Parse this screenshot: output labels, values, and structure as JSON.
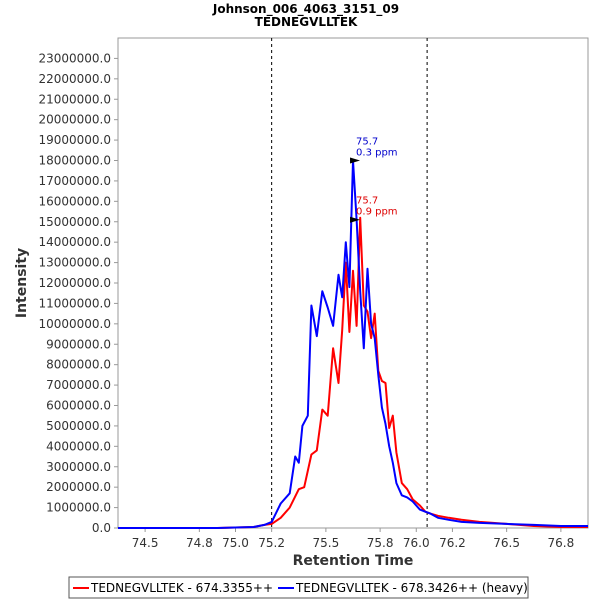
{
  "chart_data": {
    "type": "line",
    "title": "Johnson_006_4063_3151_09",
    "subtitle": "TEDNEGVLLTEK",
    "xlabel": "Retention Time",
    "ylabel": "Intensity",
    "xlim": [
      74.35,
      76.95
    ],
    "ylim": [
      0,
      24000000
    ],
    "xticks": [
      74.5,
      74.8,
      75.0,
      75.2,
      75.5,
      75.8,
      76.0,
      76.2,
      76.5,
      76.8
    ],
    "xtick_labels": [
      "74.5",
      "74.8",
      "75.0",
      "75.2",
      "75.5",
      "75.8",
      "76.0",
      "76.2",
      "76.5",
      "76.8"
    ],
    "yticks": [
      0,
      1000000,
      2000000,
      3000000,
      4000000,
      5000000,
      6000000,
      7000000,
      8000000,
      9000000,
      10000000,
      11000000,
      12000000,
      13000000,
      14000000,
      15000000,
      16000000,
      17000000,
      18000000,
      19000000,
      20000000,
      21000000,
      22000000,
      23000000
    ],
    "ytick_labels": [
      "0.0",
      "1000000.0",
      "2000000.0",
      "3000000.0",
      "4000000.0",
      "5000000.0",
      "6000000.0",
      "7000000.0",
      "8000000.0",
      "9000000.0",
      "10000000.0",
      "11000000.0",
      "12000000.0",
      "13000000.0",
      "14000000.0",
      "15000000.0",
      "16000000.0",
      "17000000.0",
      "18000000.0",
      "19000000.0",
      "20000000.0",
      "21000000.0",
      "22000000.0",
      "23000000.0"
    ],
    "grid": false,
    "legend_position": "bottom",
    "boundaries": [
      75.2,
      76.06
    ],
    "series": [
      {
        "name": "TEDNEGVLLTEK - 674.3355++",
        "color": "#ff0000",
        "x": [
          74.35,
          74.6,
          74.9,
          75.1,
          75.16,
          75.2,
          75.25,
          75.3,
          75.35,
          75.38,
          75.42,
          75.45,
          75.48,
          75.51,
          75.54,
          75.57,
          75.59,
          75.61,
          75.63,
          75.65,
          75.67,
          75.69,
          75.71,
          75.73,
          75.75,
          75.77,
          75.79,
          75.81,
          75.83,
          75.85,
          75.87,
          75.89,
          75.92,
          75.95,
          75.98,
          76.02,
          76.05,
          76.08,
          76.12,
          76.18,
          76.25,
          76.35,
          76.5,
          76.65,
          76.8,
          76.95
        ],
        "y": [
          0,
          0,
          0,
          50000,
          150000,
          200000,
          500000,
          1000000,
          1900000,
          2000000,
          3600000,
          3800000,
          5800000,
          5500000,
          8800000,
          7100000,
          9700000,
          13000000,
          9600000,
          12600000,
          9900000,
          15200000,
          10900000,
          10600000,
          9300000,
          10500000,
          7700000,
          7200000,
          7100000,
          4900000,
          5500000,
          3700000,
          2200000,
          1900000,
          1400000,
          1100000,
          800000,
          700000,
          600000,
          500000,
          400000,
          300000,
          200000,
          100000,
          50000,
          50000
        ]
      },
      {
        "name": "TEDNEGVLLTEK - 678.3426++ (heavy)",
        "color": "#0000ff",
        "x": [
          74.35,
          74.6,
          74.9,
          75.1,
          75.16,
          75.2,
          75.25,
          75.3,
          75.33,
          75.35,
          75.37,
          75.4,
          75.42,
          75.45,
          75.48,
          75.51,
          75.54,
          75.57,
          75.59,
          75.61,
          75.63,
          75.65,
          75.67,
          75.69,
          75.71,
          75.73,
          75.75,
          75.77,
          75.79,
          75.81,
          75.83,
          75.85,
          75.87,
          75.89,
          75.92,
          75.95,
          75.98,
          76.02,
          76.05,
          76.08,
          76.12,
          76.18,
          76.25,
          76.35,
          76.5,
          76.65,
          76.8,
          76.95
        ],
        "y": [
          0,
          0,
          0,
          50000,
          150000,
          300000,
          1200000,
          1700000,
          3500000,
          3200000,
          5000000,
          5500000,
          10900000,
          9400000,
          11600000,
          10800000,
          9900000,
          12400000,
          11300000,
          14000000,
          11800000,
          18000000,
          15100000,
          11600000,
          8800000,
          12700000,
          10000000,
          9300000,
          7500000,
          5900000,
          5100000,
          4000000,
          3200000,
          2200000,
          1600000,
          1500000,
          1300000,
          900000,
          800000,
          700000,
          500000,
          400000,
          300000,
          250000,
          200000,
          150000,
          100000,
          100000
        ]
      }
    ],
    "annotations": [
      {
        "series": 1,
        "x": 75.7,
        "y": 18000000,
        "label_rt": "75.7",
        "label_ppm": "0.3 ppm",
        "color": "#0000cc"
      },
      {
        "series": 0,
        "x": 75.7,
        "y": 15100000,
        "label_rt": "75.7",
        "label_ppm": "0.9 ppm",
        "color": "#dd0000"
      }
    ]
  }
}
